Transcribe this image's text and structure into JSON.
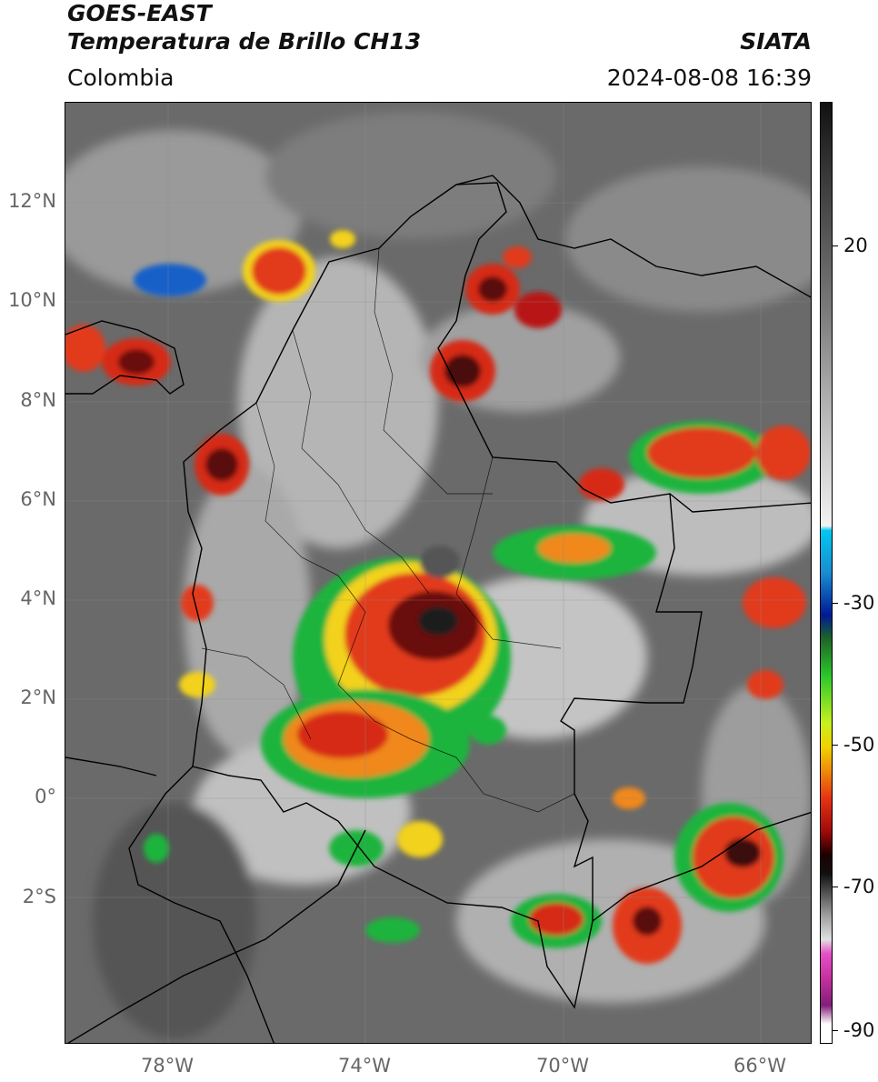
{
  "header": {
    "satellite": "GOES-EAST",
    "product": "Temperatura de Brillo CH13",
    "region": "Colombia",
    "source": "SIATA",
    "datetime": "2024-08-08 16:39"
  },
  "axes": {
    "lat_labels": [
      "12°N",
      "10°N",
      "8°N",
      "6°N",
      "4°N",
      "2°N",
      "0°",
      "2°S"
    ],
    "lon_labels": [
      "78°W",
      "74°W",
      "70°W",
      "66°W"
    ]
  },
  "colorbar": {
    "labels": [
      "20",
      "-30",
      "-50",
      "-70",
      "-90"
    ]
  }
}
